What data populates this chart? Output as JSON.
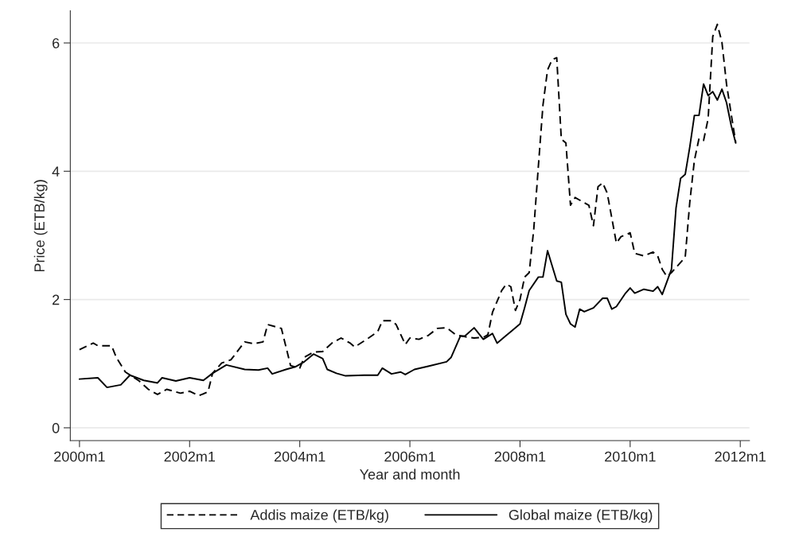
{
  "chart_data": {
    "type": "line",
    "xlabel": "Year and month",
    "ylabel": "Price (ETB/kg)",
    "xlim": [
      "1999-11",
      "2012-03"
    ],
    "xticks": [
      {
        "value": "2000-01",
        "label": "2000m1"
      },
      {
        "value": "2002-01",
        "label": "2002m1"
      },
      {
        "value": "2004-01",
        "label": "2004m1"
      },
      {
        "value": "2006-01",
        "label": "2006m1"
      },
      {
        "value": "2008-01",
        "label": "2008m1"
      },
      {
        "value": "2010-01",
        "label": "2010m1"
      },
      {
        "value": "2012-01",
        "label": "2012m1"
      }
    ],
    "ylim": [
      -0.2,
      6.5
    ],
    "yticks": [
      0,
      2,
      4,
      6
    ],
    "grid": "y",
    "legend": "bottom",
    "series": [
      {
        "name": "Addis maize (ETB/kg)",
        "color": "#000000",
        "line_style": "dashed",
        "x": [
          "2000-01",
          "2000-04",
          "2000-05",
          "2000-08",
          "2000-09",
          "2000-11",
          "2001-02",
          "2001-04",
          "2001-06",
          "2001-08",
          "2001-11",
          "2002-01",
          "2002-03",
          "2002-05",
          "2002-06",
          "2002-08",
          "2002-10",
          "2003-01",
          "2003-03",
          "2003-05",
          "2003-06",
          "2003-09",
          "2003-11",
          "2004-01",
          "2004-02",
          "2004-04",
          "2004-06",
          "2004-08",
          "2004-10",
          "2004-12",
          "2005-01",
          "2005-04",
          "2005-06",
          "2005-07",
          "2005-09",
          "2005-10",
          "2005-12",
          "2006-01",
          "2006-03",
          "2006-05",
          "2006-07",
          "2006-09",
          "2006-11",
          "2007-01",
          "2007-03",
          "2007-05",
          "2007-06",
          "2007-07",
          "2007-09",
          "2007-10",
          "2007-11",
          "2007-12",
          "2008-01",
          "2008-02",
          "2008-03",
          "2008-04",
          "2008-05",
          "2008-06",
          "2008-07",
          "2008-08",
          "2008-09",
          "2008-10",
          "2008-11",
          "2008-12",
          "2009-01",
          "2009-04",
          "2009-05",
          "2009-06",
          "2009-07",
          "2009-08",
          "2009-10",
          "2009-11",
          "2010-01",
          "2010-02",
          "2010-04",
          "2010-06",
          "2010-07",
          "2010-08",
          "2010-09",
          "2010-10",
          "2011-01",
          "2011-02",
          "2011-03",
          "2011-04",
          "2011-05",
          "2011-06",
          "2011-07",
          "2011-08",
          "2011-09",
          "2011-10",
          "2011-11",
          "2011-12"
        ],
        "values": [
          1.22,
          1.32,
          1.28,
          1.28,
          1.1,
          0.87,
          0.73,
          0.6,
          0.52,
          0.6,
          0.54,
          0.57,
          0.5,
          0.56,
          0.85,
          1.01,
          1.06,
          1.34,
          1.31,
          1.34,
          1.61,
          1.55,
          0.97,
          0.93,
          1.1,
          1.18,
          1.19,
          1.32,
          1.4,
          1.32,
          1.26,
          1.4,
          1.5,
          1.67,
          1.67,
          1.61,
          1.3,
          1.4,
          1.38,
          1.44,
          1.55,
          1.56,
          1.45,
          1.42,
          1.4,
          1.41,
          1.45,
          1.8,
          2.14,
          2.24,
          2.2,
          1.83,
          2.0,
          2.35,
          2.42,
          3.1,
          4.08,
          5.03,
          5.58,
          5.74,
          5.77,
          4.5,
          4.44,
          3.47,
          3.59,
          3.47,
          3.15,
          3.76,
          3.82,
          3.66,
          2.88,
          2.98,
          3.04,
          2.72,
          2.68,
          2.74,
          2.68,
          2.47,
          2.36,
          2.42,
          2.66,
          3.52,
          4.17,
          4.51,
          4.48,
          4.82,
          6.1,
          6.29,
          6.01,
          5.36,
          4.9,
          4.45
        ]
      },
      {
        "name": "Global maize (ETB/kg)",
        "color": "#000000",
        "line_style": "solid",
        "x": [
          "2000-01",
          "2000-05",
          "2000-07",
          "2000-10",
          "2000-12",
          "2001-03",
          "2001-06",
          "2001-07",
          "2001-10",
          "2002-01",
          "2002-04",
          "2002-06",
          "2002-09",
          "2003-01",
          "2003-04",
          "2003-06",
          "2003-07",
          "2003-10",
          "2003-12",
          "2004-02",
          "2004-04",
          "2004-06",
          "2004-07",
          "2004-09",
          "2004-11",
          "2005-03",
          "2005-06",
          "2005-07",
          "2005-09",
          "2005-11",
          "2005-12",
          "2006-02",
          "2006-05",
          "2006-09",
          "2006-10",
          "2006-12",
          "2007-01",
          "2007-03",
          "2007-05",
          "2007-07",
          "2007-08",
          "2007-10",
          "2007-11",
          "2008-01",
          "2008-02",
          "2008-03",
          "2008-05",
          "2008-06",
          "2008-07",
          "2008-09",
          "2008-10",
          "2008-11",
          "2008-12",
          "2009-01",
          "2009-02",
          "2009-03",
          "2009-05",
          "2009-07",
          "2009-08",
          "2009-09",
          "2009-10",
          "2009-12",
          "2010-01",
          "2010-02",
          "2010-04",
          "2010-06",
          "2010-07",
          "2010-08",
          "2010-10",
          "2010-11",
          "2010-12",
          "2011-01",
          "2011-02",
          "2011-03",
          "2011-04",
          "2011-05",
          "2011-06",
          "2011-07",
          "2011-08",
          "2011-09",
          "2011-10",
          "2011-11",
          "2011-12"
        ],
        "values": [
          0.76,
          0.78,
          0.63,
          0.67,
          0.82,
          0.74,
          0.7,
          0.78,
          0.73,
          0.78,
          0.74,
          0.85,
          0.98,
          0.91,
          0.9,
          0.93,
          0.84,
          0.91,
          0.95,
          1.03,
          1.15,
          1.08,
          0.91,
          0.85,
          0.81,
          0.82,
          0.82,
          0.93,
          0.84,
          0.87,
          0.83,
          0.91,
          0.96,
          1.03,
          1.1,
          1.43,
          1.43,
          1.56,
          1.38,
          1.47,
          1.32,
          1.44,
          1.5,
          1.62,
          1.87,
          2.14,
          2.35,
          2.35,
          2.76,
          2.29,
          2.27,
          1.77,
          1.62,
          1.57,
          1.85,
          1.81,
          1.87,
          2.02,
          2.02,
          1.85,
          1.89,
          2.1,
          2.18,
          2.1,
          2.16,
          2.13,
          2.2,
          2.08,
          2.47,
          3.43,
          3.89,
          3.95,
          4.38,
          4.87,
          4.87,
          5.36,
          5.18,
          5.24,
          5.11,
          5.28,
          5.07,
          4.72,
          4.44
        ]
      }
    ]
  }
}
